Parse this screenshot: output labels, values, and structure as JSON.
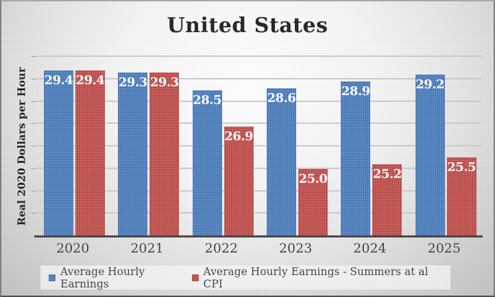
{
  "title": "United States",
  "y_axis_label": "Real 2020 Dollars per Hour",
  "chart_data": {
    "type": "bar",
    "title": "United States",
    "ylabel": "Real 2020 Dollars per Hour",
    "xlabel": "",
    "categories": [
      "2020",
      "2021",
      "2022",
      "2023",
      "2024",
      "2025"
    ],
    "series": [
      {
        "name": "Average Hourly Earnings",
        "color": "#4d7ebc",
        "values": [
          29.4,
          29.3,
          28.5,
          28.6,
          28.9,
          29.2
        ]
      },
      {
        "name": "Average Hourly Earnings - Summers at al CPI",
        "color": "#c0504d",
        "values": [
          29.4,
          29.3,
          26.9,
          25.0,
          25.2,
          25.5
        ]
      }
    ],
    "ylim": [
      22,
      30
    ],
    "gridline_step": 1,
    "grid": true,
    "y_tick_labels_visible": false,
    "data_labels": true,
    "data_label_color": "#ffffff",
    "legend_position": "bottom"
  },
  "colors": {
    "bar_blue": "#4d7ebc",
    "bar_red": "#c0504d",
    "axis_line": "#3d3d3d",
    "gridline": "#c8c8c8",
    "title_text": "#1f1f1f",
    "axis_text": "#3d3d3d",
    "legend_background": "#f6f6f6"
  }
}
